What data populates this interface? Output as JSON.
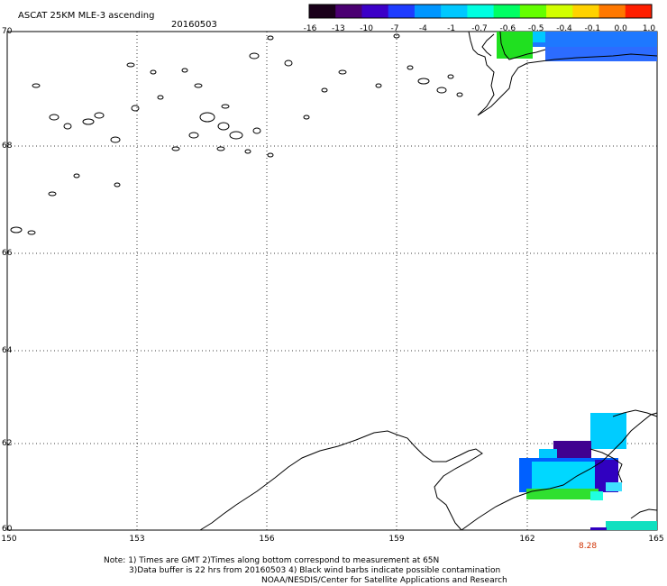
{
  "title": "ASCAT 25KM MLE-3 ascending",
  "date": "20160503",
  "colorbar": {
    "labels": [
      "-16",
      "-13",
      "-10",
      "-7",
      "-4",
      "-1",
      "-0.7",
      "-0.6",
      "-0.5",
      "-0.4",
      "-0.1",
      "0.0",
      "1.0"
    ],
    "colors": [
      "#1a001a",
      "#4b0072",
      "#3c00c8",
      "#1e3cff",
      "#0096ff",
      "#00c8ff",
      "#00ffe0",
      "#00ff64",
      "#64ff00",
      "#d2ff00",
      "#ffd200",
      "#ff7800",
      "#ff1e00"
    ]
  },
  "latitudes": [
    "70",
    "68",
    "66",
    "64",
    "62",
    "60"
  ],
  "longitudes": [
    "150",
    "153",
    "156",
    "159",
    "162",
    "165"
  ],
  "time_label": "8.28",
  "notes": {
    "line1": "Note: 1) Times are GMT 2)Times along bottom correspond to measurement at 65N",
    "line2": "3)Data buffer is 22 hrs from 20160503 4) Black wind barbs indicate possible contamination",
    "line3": "NOAA/NESDIS/Center for Satellite Applications and Research"
  }
}
